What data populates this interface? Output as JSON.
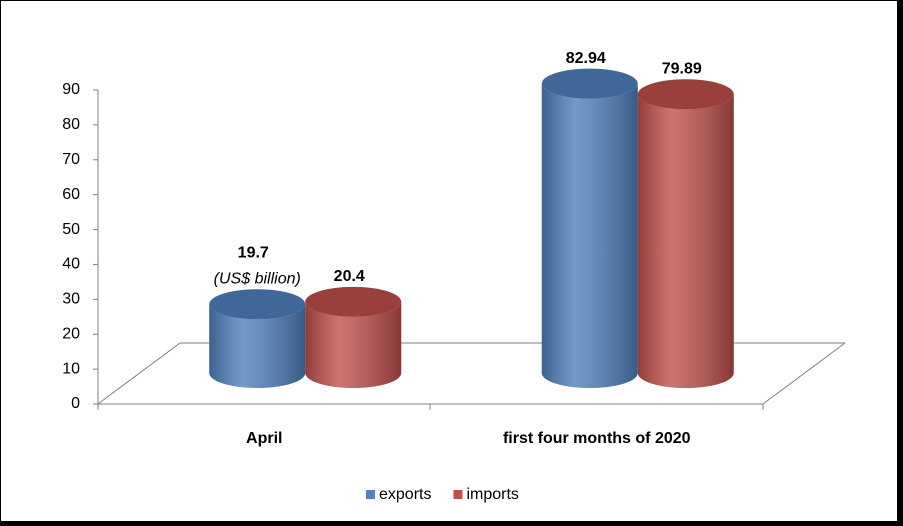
{
  "chart_data": {
    "type": "cylinder-bar",
    "categories": [
      "April",
      "first four months of 2020"
    ],
    "series": [
      {
        "name": "exports",
        "color": "#4f81bd",
        "values": [
          19.7,
          82.94
        ]
      },
      {
        "name": "imports",
        "color": "#c0504d",
        "values": [
          20.4,
          79.89
        ]
      }
    ],
    "annotation": "(US$ billion)",
    "ylim": [
      0,
      90
    ],
    "yticks": [
      0,
      10,
      20,
      30,
      40,
      50,
      60,
      70,
      80,
      90
    ],
    "legend": "bottom"
  }
}
